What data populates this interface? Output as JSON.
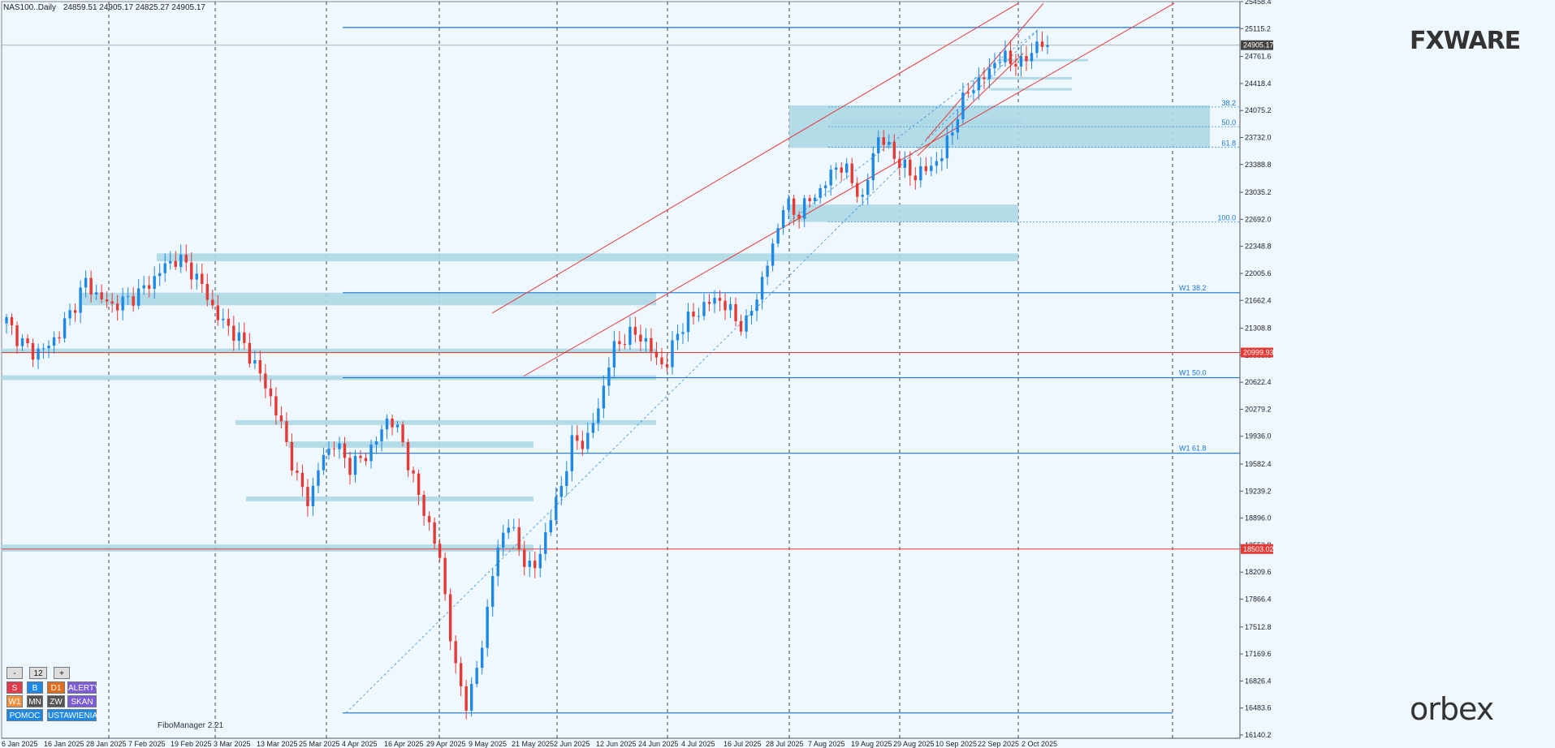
{
  "header": {
    "symbol": "NAS100..Daily",
    "ohlc": "24859.51 24905.17 24825.27 24905.17"
  },
  "branding": {
    "fxware": "FXWARE",
    "orbex": "orbex",
    "fibo_manager": "FiboManager 2.21"
  },
  "panel": {
    "minus": "-",
    "value": "12",
    "plus": "+",
    "row1": [
      "S",
      "B",
      "D1",
      "ALERTY"
    ],
    "row2": [
      "W1",
      "MN",
      "ZW",
      "SKAN"
    ],
    "row3": [
      "POMOC",
      "USTAWIENIA"
    ]
  },
  "chart_data": {
    "type": "candlestick",
    "ylim": [
      16140,
      25458.4
    ],
    "y_ticks": [
      16140.2,
      16483.6,
      16826.4,
      17169.6,
      17512.8,
      17866.4,
      18209.6,
      18552.8,
      18896.0,
      19239.2,
      19582.4,
      19936.0,
      20279.2,
      20622.4,
      20965.6,
      21308.8,
      21662.4,
      22005.6,
      22348.8,
      22692.0,
      23035.2,
      23388.8,
      23732.0,
      24075.2,
      24418.4,
      24761.6,
      25115.2,
      25458.4
    ],
    "x_ticks": [
      "6 Jan 2025",
      "16 Jan 2025",
      "28 Jan 2025",
      "7 Feb 2025",
      "19 Feb 2025",
      "3 Mar 2025",
      "13 Mar 2025",
      "25 Mar 2025",
      "4 Apr 2025",
      "16 Apr 2025",
      "29 Apr 2025",
      "9 May 2025",
      "21 May 2025",
      "2 Jun 2025",
      "12 Jun 2025",
      "24 Jun 2025",
      "4 Jul 2025",
      "16 Jul 2025",
      "28 Jul 2025",
      "7 Aug 2025",
      "19 Aug 2025",
      "29 Aug 2025",
      "10 Sep 2025",
      "22 Sep 2025",
      "2 Oct 2025"
    ],
    "candle_count": 198,
    "anchor_closes": [
      21400,
      21150,
      21000,
      21050,
      21250,
      21550,
      21900,
      21700,
      21600,
      21650,
      21750,
      21900,
      22100,
      22200,
      22050,
      21800,
      21450,
      21300,
      21100,
      20800,
      20450,
      20000,
      19400,
      19100,
      19700,
      19850,
      19550,
      19650,
      19850,
      20200,
      19900,
      19300,
      18850,
      18300,
      17000,
      16500,
      17200,
      18300,
      18900,
      18450,
      18200,
      18750,
      19250,
      19900,
      19850,
      20350,
      21050,
      21200,
      21250,
      21000,
      20800,
      21300,
      21450,
      21600,
      21700,
      21500,
      21300,
      21750,
      22250,
      22900,
      22750,
      22950,
      23100,
      23400,
      23250,
      22900,
      23750,
      23600,
      23350,
      23250,
      23350,
      23500,
      23950,
      24350,
      24450,
      24700,
      24750,
      24650,
      24900,
      24905
    ],
    "current_price": "24905.17",
    "price_labels": [
      {
        "value": 20999.93,
        "text": "20999.93",
        "color": "#e53935"
      },
      {
        "value": 18503.02,
        "text": "18503.02",
        "color": "#e53935"
      }
    ],
    "fib_levels": [
      {
        "label": "38.2",
        "value": 24120
      },
      {
        "label": "50.0",
        "value": 23870
      },
      {
        "label": "61.8",
        "value": 23610
      },
      {
        "label": "100.0",
        "value": 22660
      }
    ],
    "weekly_levels": [
      {
        "label": "W1 38.2",
        "value": 21760
      },
      {
        "label": "W1 50.0",
        "value": 20680
      },
      {
        "label": "W1 61.8",
        "value": 19720
      }
    ],
    "colors": {
      "up": "#1e88e5",
      "down": "#e53935",
      "zone": "#add8e6",
      "grid": "#444444",
      "channel": "#e53935",
      "level": "#1976d2"
    }
  }
}
